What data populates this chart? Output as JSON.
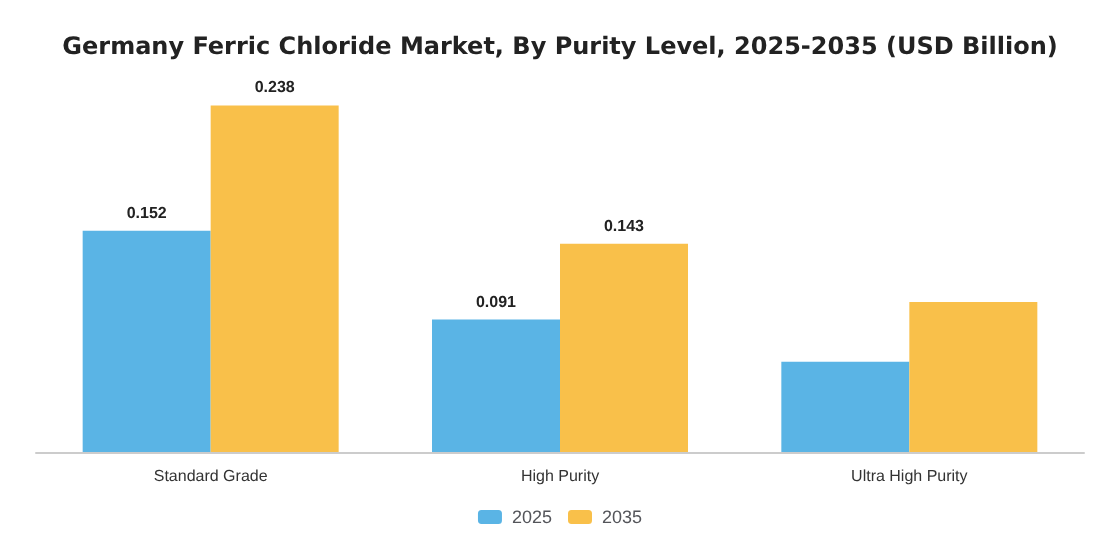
{
  "chart_data": {
    "type": "bar",
    "title": "Germany Ferric Chloride Market, By Purity Level, 2025-2035 (USD Billion)",
    "categories": [
      "Standard Grade",
      "High Purity",
      "Ultra High Purity"
    ],
    "series": [
      {
        "name": "2025",
        "color": "#5ab4e5",
        "values": [
          0.152,
          0.091,
          0.062
        ],
        "value_labels": [
          "0.152",
          "0.091",
          null
        ]
      },
      {
        "name": "2035",
        "color": "#f9c04a",
        "values": [
          0.238,
          0.143,
          0.103
        ],
        "value_labels": [
          "0.238",
          "0.143",
          null
        ]
      }
    ],
    "legend": "bottom",
    "grid": false,
    "tick_labels": "x"
  }
}
